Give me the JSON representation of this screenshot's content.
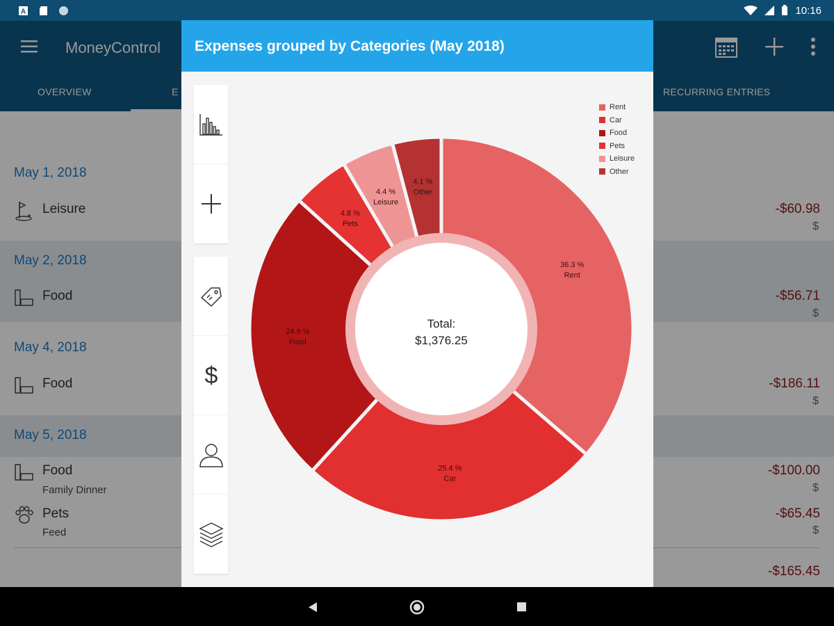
{
  "status_bar": {
    "time": "10:16"
  },
  "app": {
    "title": "MoneyControl"
  },
  "tabs": [
    {
      "label": "OVERVIEW"
    },
    {
      "label": "E"
    },
    {
      "label": "RECURRING ENTRIES"
    }
  ],
  "groups": [
    {
      "date": "May 1, 2018",
      "entries": [
        {
          "icon": "golf-icon",
          "label": "Leisure",
          "sub": "",
          "amount": "-$60.98",
          "currency": "$"
        }
      ]
    },
    {
      "date": "May 2, 2018",
      "entries": [
        {
          "icon": "food-icon",
          "label": "Food",
          "sub": "",
          "amount": "-$56.71",
          "currency": "$"
        }
      ]
    },
    {
      "date": "May 4, 2018",
      "entries": [
        {
          "icon": "food-icon",
          "label": "Food",
          "sub": "",
          "amount": "-$186.11",
          "currency": "$"
        }
      ]
    },
    {
      "date": "May 5, 2018",
      "entries": [
        {
          "icon": "food-icon",
          "label": "Food",
          "sub": "Family Dinner",
          "amount": "-$100.00",
          "currency": "$"
        },
        {
          "icon": "paw-icon",
          "label": "Pets",
          "sub": "Feed",
          "amount": "-$65.45",
          "currency": "$"
        }
      ]
    }
  ],
  "footer_amount": "-$165.45",
  "dialog": {
    "title": "Expenses grouped by Categories  (May 2018)",
    "total_label": "Total:",
    "total_value": "$1,376.25",
    "side_buttons": [
      "bar-chart-icon",
      "plus-icon",
      "tag-icon",
      "dollar-icon",
      "person-icon",
      "layers-icon"
    ]
  },
  "chart_data": {
    "type": "pie",
    "variant": "donut",
    "legend_position": "top-right",
    "categories": [
      "Rent",
      "Car",
      "Food",
      "Pets",
      "Leisure",
      "Other"
    ],
    "values": [
      36.3,
      25.4,
      24.9,
      4.8,
      4.4,
      4.1
    ],
    "labels": [
      "36.3 %",
      "25.4 %",
      "24.9 %",
      "4.8 %",
      "4.4 %",
      "4.1 %"
    ],
    "colors": [
      "#e66363",
      "#e22f2f",
      "#b31616",
      "#e53232",
      "#ef9494",
      "#b43232"
    ]
  }
}
